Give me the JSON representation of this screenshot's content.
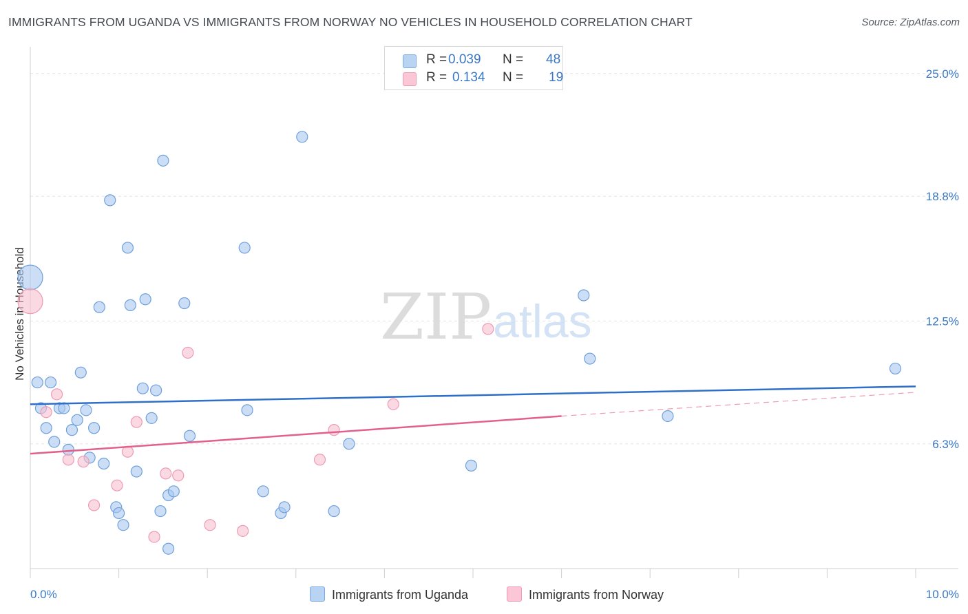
{
  "title": "IMMIGRANTS FROM UGANDA VS IMMIGRANTS FROM NORWAY NO VEHICLES IN HOUSEHOLD CORRELATION CHART",
  "source": "Source: ZipAtlas.com",
  "watermark": {
    "zip": "ZIP",
    "atlas": "atlas"
  },
  "legend": {
    "rows": [
      {
        "r_label": "R =",
        "r_value": "0.039",
        "n_label": "N =",
        "n_value": "48",
        "color": "#b9d3f3",
        "border": "#7aaae2"
      },
      {
        "r_label": "R =",
        "r_value": "0.134",
        "n_label": "N =",
        "n_value": "19",
        "color": "#fbc7d6",
        "border": "#ef9ab4"
      }
    ]
  },
  "bottom_legend": [
    {
      "label": "Immigrants from Uganda",
      "color": "#b9d3f3",
      "border": "#7aaae2"
    },
    {
      "label": "Immigrants from Norway",
      "color": "#fbc7d6",
      "border": "#ef9ab4"
    }
  ],
  "chart_data": {
    "type": "scatter",
    "title": "IMMIGRANTS FROM UGANDA VS IMMIGRANTS FROM NORWAY NO VEHICLES IN HOUSEHOLD CORRELATION CHART",
    "xlabel": "",
    "ylabel": "No Vehicles in Household",
    "xlim": [
      0,
      10
    ],
    "ylim": [
      0,
      26
    ],
    "x_tick_labels": [
      "0.0%",
      "10.0%"
    ],
    "y_ticks": [
      6.3,
      12.5,
      18.8,
      25.0
    ],
    "y_tick_labels": [
      "6.3%",
      "12.5%",
      "18.8%",
      "25.0%"
    ],
    "grid": true,
    "legend_position": "top-center",
    "series": [
      {
        "name": "Immigrants from Uganda",
        "color": "#a9c8ef",
        "stroke": "#6fa0dc",
        "trend": {
          "x": [
            0,
            10
          ],
          "y": [
            8.3,
            9.2
          ],
          "color": "#2f6fc9"
        },
        "points": [
          {
            "x": 0.0,
            "y": 14.7,
            "big": true
          },
          {
            "x": 0.08,
            "y": 9.4
          },
          {
            "x": 0.12,
            "y": 8.1
          },
          {
            "x": 0.18,
            "y": 7.1
          },
          {
            "x": 0.23,
            "y": 9.4
          },
          {
            "x": 0.27,
            "y": 6.4
          },
          {
            "x": 0.33,
            "y": 8.1
          },
          {
            "x": 0.38,
            "y": 8.1
          },
          {
            "x": 0.43,
            "y": 6.0
          },
          {
            "x": 0.47,
            "y": 7.0
          },
          {
            "x": 0.53,
            "y": 7.5
          },
          {
            "x": 0.57,
            "y": 9.9
          },
          {
            "x": 0.63,
            "y": 8.0
          },
          {
            "x": 0.67,
            "y": 5.6
          },
          {
            "x": 0.72,
            "y": 7.1
          },
          {
            "x": 0.78,
            "y": 13.2
          },
          {
            "x": 0.83,
            "y": 5.3
          },
          {
            "x": 0.9,
            "y": 18.6
          },
          {
            "x": 0.97,
            "y": 3.1
          },
          {
            "x": 1.0,
            "y": 2.8
          },
          {
            "x": 1.05,
            "y": 2.2
          },
          {
            "x": 1.1,
            "y": 16.2
          },
          {
            "x": 1.13,
            "y": 13.3
          },
          {
            "x": 1.2,
            "y": 4.9
          },
          {
            "x": 1.27,
            "y": 9.1
          },
          {
            "x": 1.3,
            "y": 13.6
          },
          {
            "x": 1.37,
            "y": 7.6
          },
          {
            "x": 1.42,
            "y": 9.0
          },
          {
            "x": 1.47,
            "y": 2.9
          },
          {
            "x": 1.5,
            "y": 20.6
          },
          {
            "x": 1.56,
            "y": 1.0
          },
          {
            "x": 1.56,
            "y": 3.7
          },
          {
            "x": 1.62,
            "y": 3.9
          },
          {
            "x": 1.74,
            "y": 13.4
          },
          {
            "x": 1.8,
            "y": 6.7
          },
          {
            "x": 2.42,
            "y": 16.2
          },
          {
            "x": 2.45,
            "y": 8.0
          },
          {
            "x": 2.63,
            "y": 3.9
          },
          {
            "x": 2.83,
            "y": 2.8
          },
          {
            "x": 2.87,
            "y": 3.1
          },
          {
            "x": 3.07,
            "y": 21.8
          },
          {
            "x": 3.43,
            "y": 2.9
          },
          {
            "x": 3.6,
            "y": 6.3
          },
          {
            "x": 4.98,
            "y": 5.2
          },
          {
            "x": 6.25,
            "y": 13.8
          },
          {
            "x": 6.32,
            "y": 10.6
          },
          {
            "x": 7.2,
            "y": 7.7
          },
          {
            "x": 9.77,
            "y": 10.1
          }
        ]
      },
      {
        "name": "Immigrants from Norway",
        "color": "#f9c0d1",
        "stroke": "#ee9ab4",
        "trend": {
          "x": [
            0,
            6.0
          ],
          "y": [
            5.8,
            7.7
          ],
          "color": "#e2608c"
        },
        "trend_dashed": {
          "x": [
            6.0,
            10
          ],
          "y": [
            7.7,
            8.9
          ]
        },
        "points": [
          {
            "x": 0.0,
            "y": 13.5,
            "big": true
          },
          {
            "x": 0.18,
            "y": 7.9
          },
          {
            "x": 0.3,
            "y": 8.8
          },
          {
            "x": 0.43,
            "y": 5.5
          },
          {
            "x": 0.6,
            "y": 5.4
          },
          {
            "x": 0.72,
            "y": 3.2
          },
          {
            "x": 0.98,
            "y": 4.2
          },
          {
            "x": 1.1,
            "y": 5.9
          },
          {
            "x": 1.2,
            "y": 7.4
          },
          {
            "x": 1.4,
            "y": 1.6
          },
          {
            "x": 1.53,
            "y": 4.8
          },
          {
            "x": 1.67,
            "y": 4.7
          },
          {
            "x": 1.78,
            "y": 10.9
          },
          {
            "x": 2.03,
            "y": 2.2
          },
          {
            "x": 2.4,
            "y": 1.9
          },
          {
            "x": 3.27,
            "y": 5.5
          },
          {
            "x": 3.43,
            "y": 7.0
          },
          {
            "x": 4.1,
            "y": 8.3
          },
          {
            "x": 5.17,
            "y": 12.1
          }
        ]
      }
    ]
  }
}
